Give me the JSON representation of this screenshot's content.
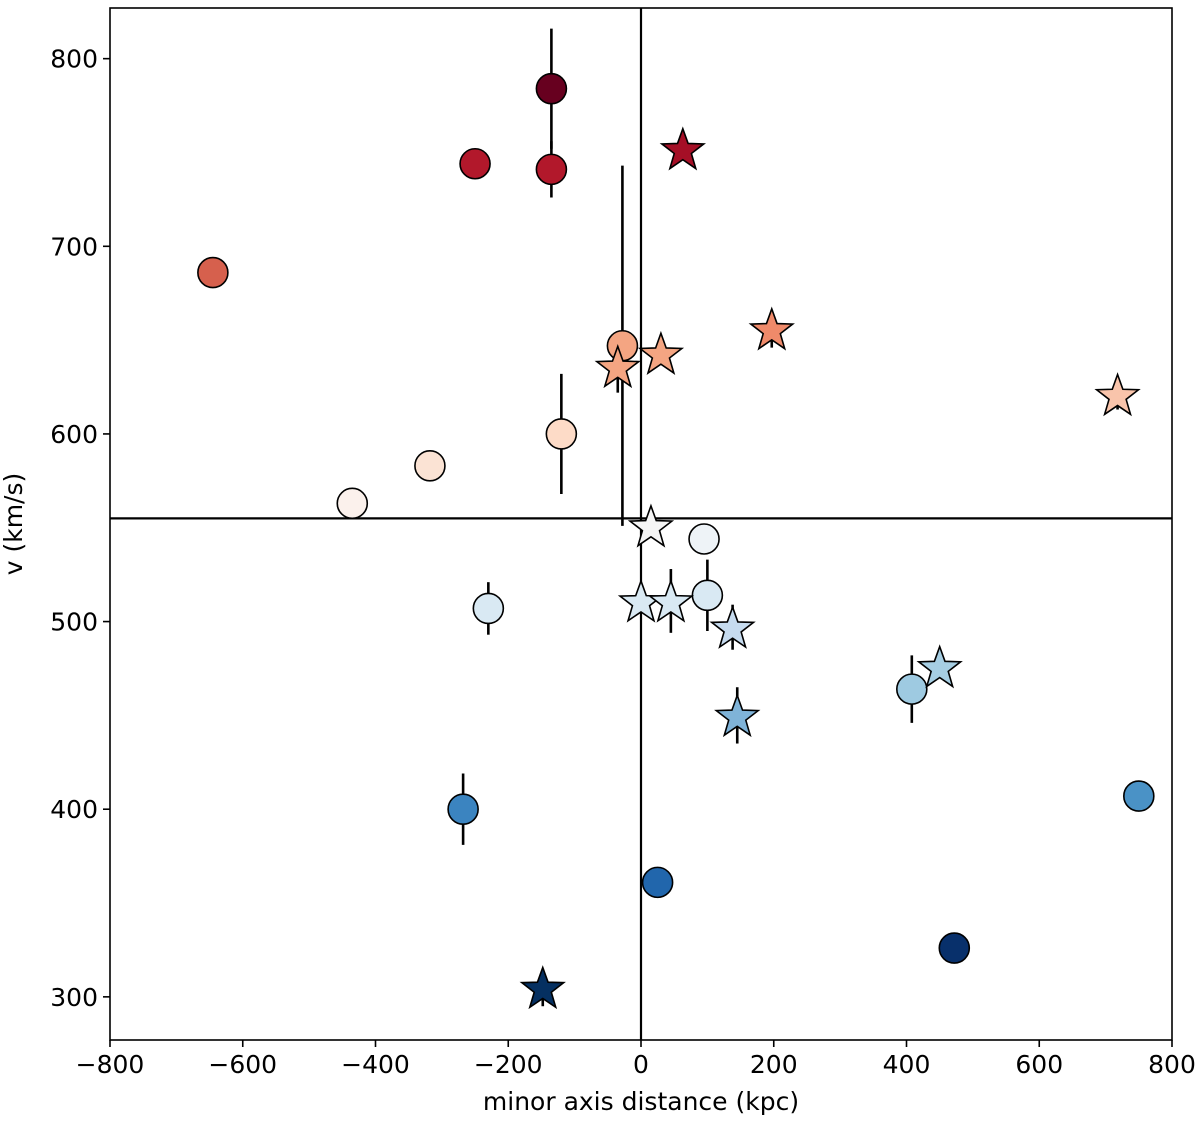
{
  "chart_data": {
    "type": "scatter",
    "title": "",
    "xlabel": "minor axis distance (kpc)",
    "ylabel": "v (km/s)",
    "xlim": [
      -800,
      800
    ],
    "ylim": [
      277,
      827
    ],
    "xticks": [
      -800,
      -600,
      -400,
      -200,
      0,
      200,
      400,
      600,
      800
    ],
    "yticks": [
      300,
      400,
      500,
      600,
      700,
      800
    ],
    "xtick_labels": [
      "−800",
      "−600",
      "−400",
      "−200",
      "0",
      "200",
      "400",
      "600",
      "800"
    ],
    "ytick_labels": [
      "300",
      "400",
      "500",
      "600",
      "700",
      "800"
    ],
    "reference_lines": {
      "vertical_x": 0,
      "horizontal_y": 555
    },
    "colormap": "RdBu_r (color encodes velocity)",
    "series": [
      {
        "name": "circles",
        "marker": "circle",
        "points": [
          {
            "x": -135,
            "y": 784,
            "yerr": 32,
            "color": "#67001f"
          },
          {
            "x": -250,
            "y": 744,
            "yerr": 0,
            "color": "#b2182b"
          },
          {
            "x": -135,
            "y": 741,
            "yerr": 15,
            "color": "#b2182b"
          },
          {
            "x": -645,
            "y": 686,
            "yerr": 0,
            "color": "#d6604d"
          },
          {
            "x": -28,
            "y": 647,
            "yerr": 96,
            "color": "#f4a582"
          },
          {
            "x": -120,
            "y": 600,
            "yerr": 32,
            "color": "#fddbc7"
          },
          {
            "x": -318,
            "y": 583,
            "yerr": 0,
            "color": "#fbe3d4"
          },
          {
            "x": -435,
            "y": 563,
            "yerr": 0,
            "color": "#fbf1ec"
          },
          {
            "x": 95,
            "y": 544,
            "yerr": 0,
            "color": "#eef3f7"
          },
          {
            "x": -230,
            "y": 507,
            "yerr": 14,
            "color": "#d9e9f3"
          },
          {
            "x": 100,
            "y": 514,
            "yerr": 19,
            "color": "#d9e9f3"
          },
          {
            "x": 408,
            "y": 464,
            "yerr": 18,
            "color": "#9ecae1"
          },
          {
            "x": 750,
            "y": 407,
            "yerr": 0,
            "color": "#4a92c6"
          },
          {
            "x": -268,
            "y": 400,
            "yerr": 19,
            "color": "#3b84c0"
          },
          {
            "x": 25,
            "y": 361,
            "yerr": 0,
            "color": "#2166ac"
          },
          {
            "x": 472,
            "y": 326,
            "yerr": 0,
            "color": "#08306b"
          }
        ]
      },
      {
        "name": "stars",
        "marker": "star",
        "points": [
          {
            "x": 63,
            "y": 752,
            "yerr": 0,
            "color": "#a50f26"
          },
          {
            "x": 197,
            "y": 656,
            "yerr": 10,
            "color": "#ef8a6a"
          },
          {
            "x": 30,
            "y": 643,
            "yerr": 0,
            "color": "#f4a582"
          },
          {
            "x": -35,
            "y": 636,
            "yerr": 14,
            "color": "#f4a582"
          },
          {
            "x": 718,
            "y": 621,
            "yerr": 8,
            "color": "#f9c4ab"
          },
          {
            "x": 15,
            "y": 551,
            "yerr": 0,
            "color": "#f5f5f5"
          },
          {
            "x": 0,
            "y": 511,
            "yerr": 0,
            "color": "#d9e9f3"
          },
          {
            "x": 45,
            "y": 511,
            "yerr": 17,
            "color": "#d9e9f3"
          },
          {
            "x": 138,
            "y": 497,
            "yerr": 12,
            "color": "#c6dbef"
          },
          {
            "x": 450,
            "y": 476,
            "yerr": 0,
            "color": "#a6cee3"
          },
          {
            "x": 145,
            "y": 450,
            "yerr": 15,
            "color": "#7fb3d8"
          },
          {
            "x": -148,
            "y": 305,
            "yerr": 10,
            "color": "#053061"
          }
        ]
      }
    ]
  }
}
